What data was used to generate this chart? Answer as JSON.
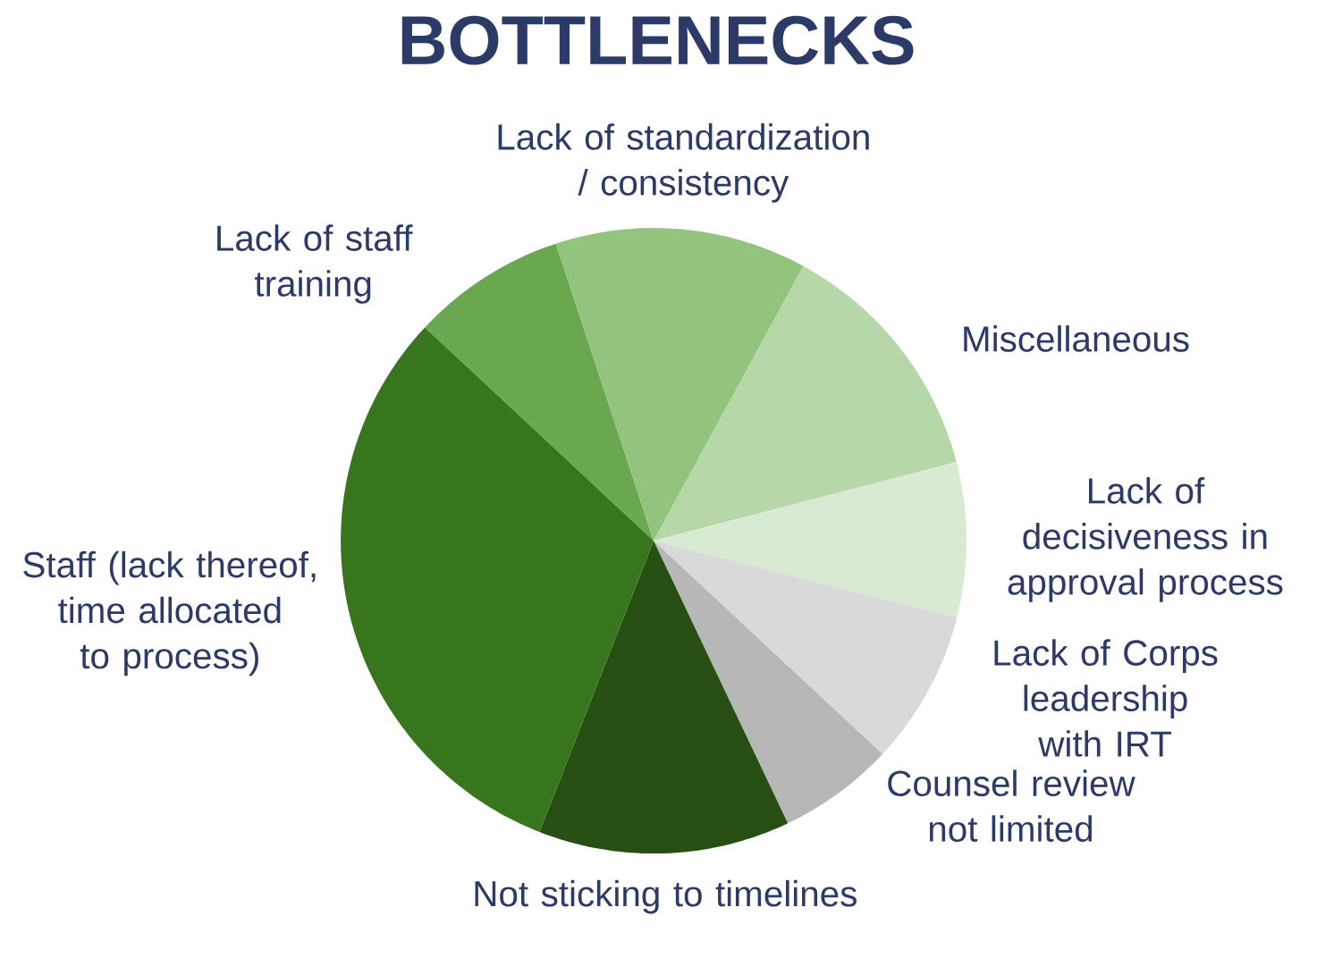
{
  "chart_data": {
    "type": "pie",
    "title": "BOTTLENECKS",
    "categories": [
      "Lack of staff training",
      "Lack of standardization / consistency",
      "Miscellaneous",
      "Lack of decisiveness in approval process",
      "Lack of Corps leadership with IRT",
      "Counsel review not limited",
      "Not sticking to timelines",
      "Staff (lack thereof, time allocated to process)"
    ],
    "values": [
      8,
      13,
      13,
      8,
      8,
      6,
      13,
      31
    ],
    "colors": [
      "#6aa84f",
      "#93c47d",
      "#b6d7a8",
      "#d9ead3",
      "#d9d9d9",
      "#b7b7b7",
      "#274e13",
      "#38761d"
    ]
  }
}
